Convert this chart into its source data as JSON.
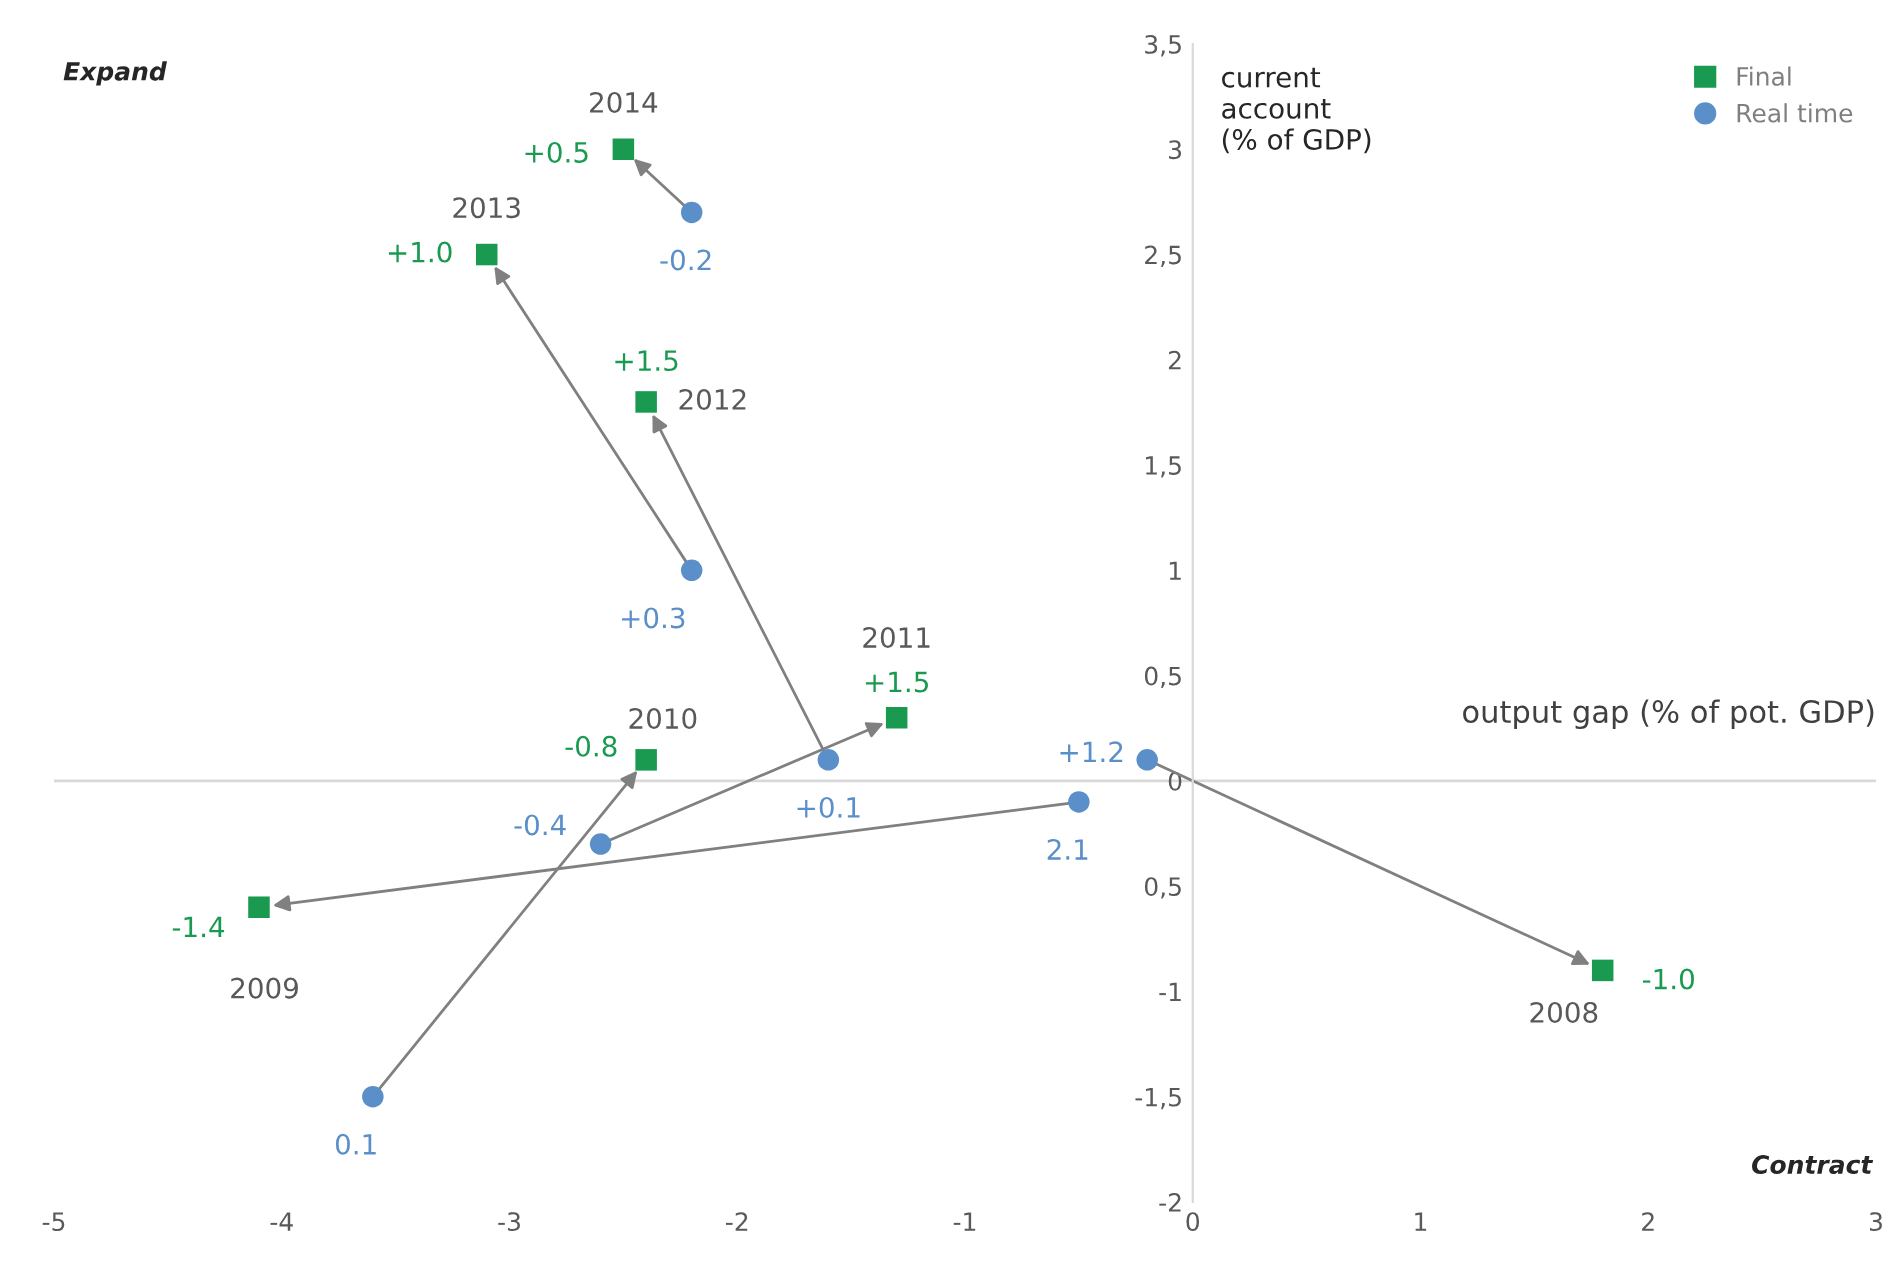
{
  "chart_data": {
    "type": "scatter",
    "xlabel": "output gap (% of pot. GDP)",
    "ylabel": "current\naccount\n(% of GDP)",
    "series": [
      {
        "name": "Final",
        "color": "#1a9a50",
        "marker": "square",
        "x": [
          1.8,
          -4.1,
          -2.4,
          -1.3,
          -2.4,
          -3.1,
          -2.5
        ],
        "values": [
          -0.9,
          -0.6,
          0.1,
          0.3,
          1.8,
          2.5,
          3.0
        ]
      },
      {
        "name": "Real time",
        "color": "#5b8fc9",
        "marker": "circle",
        "x": [
          -0.2,
          -0.5,
          -3.6,
          -2.6,
          -1.6,
          -2.2,
          -2.2
        ],
        "values": [
          0.1,
          -0.1,
          -1.5,
          -0.3,
          0.1,
          1.0,
          2.7
        ]
      }
    ],
    "annotations": [
      {
        "text": "2008",
        "x": 1.8,
        "y": -0.9
      },
      {
        "text": "2009",
        "x": -4.1,
        "y": -0.6
      },
      {
        "text": "2010",
        "x": -2.4,
        "y": 0.1
      },
      {
        "text": "2011",
        "x": -1.3,
        "y": 0.3
      },
      {
        "text": "2012",
        "x": -2.4,
        "y": 1.8
      },
      {
        "text": "2013",
        "x": -3.1,
        "y": 2.5
      },
      {
        "text": "2014",
        "x": -2.5,
        "y": 3.0
      },
      {
        "text": "-1.0",
        "x": 1.8,
        "y": -0.9
      },
      {
        "text": "-1.4",
        "x": -4.1,
        "y": -0.6
      },
      {
        "text": "-0.8",
        "x": -2.4,
        "y": 0.1
      },
      {
        "text": "+1.5",
        "x": -1.3,
        "y": 0.3
      },
      {
        "text": "+1.5",
        "x": -2.4,
        "y": 1.8
      },
      {
        "text": "+1.0",
        "x": -3.1,
        "y": 2.5
      },
      {
        "text": "+0.5",
        "x": -2.5,
        "y": 3.0
      },
      {
        "text": "+1.2",
        "x": -0.2,
        "y": 0.1
      },
      {
        "text": "2.1",
        "x": -0.5,
        "y": -0.1
      },
      {
        "text": "0.1",
        "x": -3.6,
        "y": -1.5
      },
      {
        "text": "-0.4",
        "x": -2.6,
        "y": -0.3
      },
      {
        "text": "+0.1",
        "x": -1.6,
        "y": 0.1
      },
      {
        "text": "+0.3",
        "x": -2.2,
        "y": 1.0
      },
      {
        "text": "-0.2",
        "x": -2.2,
        "y": 2.7
      },
      "Expand",
      "Contract"
    ],
    "xlim": [
      -5,
      3
    ],
    "xticks": [
      -5,
      -4,
      -3,
      -2,
      -1,
      0,
      1,
      2,
      3
    ],
    "ylim": [
      -2,
      3.5
    ],
    "yticks": [
      {
        "value": 3.5,
        "label": "3,5"
      },
      3,
      {
        "value": 2.5,
        "label": "2,5"
      },
      2,
      {
        "value": 1.5,
        "label": "1,5"
      },
      1,
      {
        "value": 0.5,
        "label": "0,5"
      },
      0,
      {
        "value": -0.5,
        "label": "0,5"
      },
      -1,
      {
        "value": -1.5,
        "label": "-1,5"
      },
      -2
    ],
    "ref_lines": [
      {
        "axis": "y",
        "value": 0,
        "label": null,
        "color": "#d9d9d9"
      }
    ],
    "grid": false,
    "legend": "top right"
  }
}
